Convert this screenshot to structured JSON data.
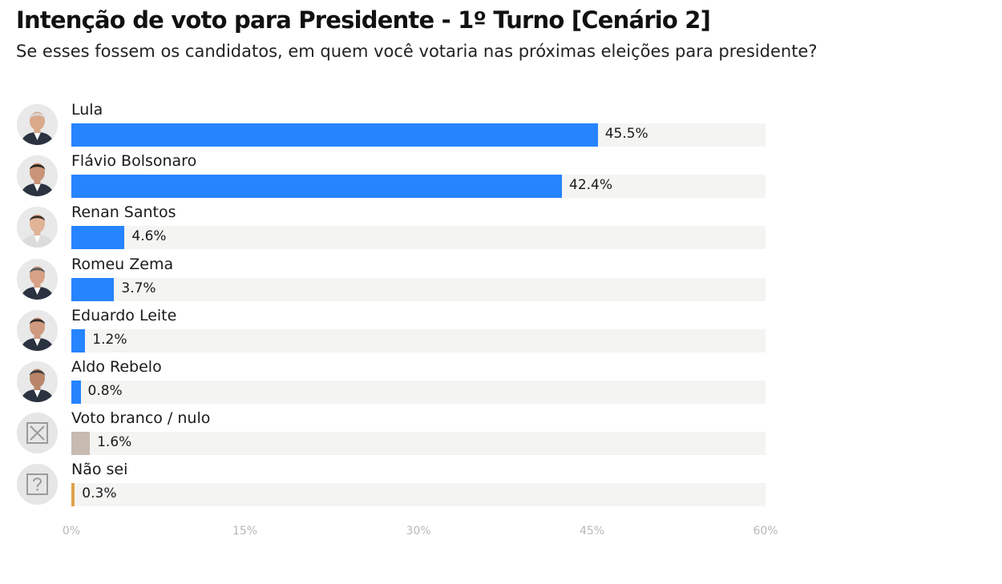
{
  "title": "Intenção de voto para Presidente - 1º Turno [Cenário 2]",
  "subtitle": "Se esses fossem os candidatos, em quem você votaria nas próximas eleições para presidente?",
  "colors": {
    "candidate": "#2684ff",
    "blank": "#c7bab1",
    "unknown": "#e0a04a",
    "track": "#f4f4f2"
  },
  "chart_data": {
    "type": "bar",
    "orientation": "horizontal",
    "title": "Intenção de voto para Presidente - 1º Turno [Cenário 2]",
    "subtitle": "Se esses fossem os candidatos, em quem você votaria nas próximas eleições para presidente?",
    "categories": [
      "Lula",
      "Flávio Bolsonaro",
      "Renan Santos",
      "Romeu Zema",
      "Eduardo Leite",
      "Aldo Rebelo",
      "Voto branco / nulo",
      "Não sei"
    ],
    "values": [
      45.5,
      42.4,
      4.6,
      3.7,
      1.2,
      0.8,
      1.6,
      0.3
    ],
    "value_labels": [
      "45.5%",
      "42.4%",
      "4.6%",
      "3.7%",
      "1.2%",
      "0.8%",
      "1.6%",
      "0.3%"
    ],
    "bar_colors": [
      "#2684ff",
      "#2684ff",
      "#2684ff",
      "#2684ff",
      "#2684ff",
      "#2684ff",
      "#c7bab1",
      "#e0a04a"
    ],
    "icons": [
      "person-photo",
      "person-photo",
      "person-photo",
      "person-photo",
      "person-photo",
      "person-photo",
      "x-box-icon",
      "question-box-icon"
    ],
    "xlim": [
      0,
      60
    ],
    "xticks": [
      "0%",
      "15%",
      "30%",
      "45%",
      "60%"
    ],
    "grid": false,
    "legend": "none"
  }
}
